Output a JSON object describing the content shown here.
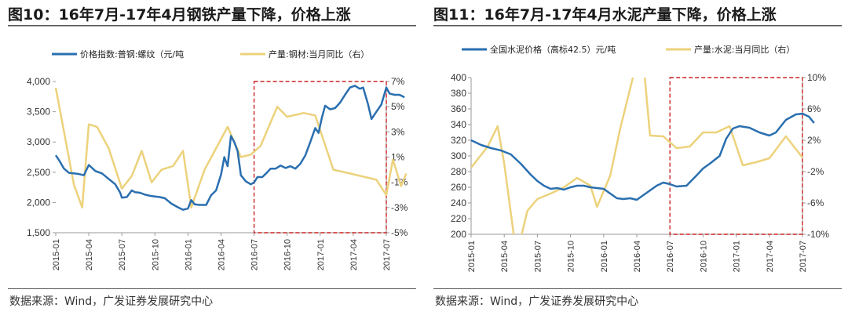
{
  "chart_data": [
    {
      "type": "line",
      "title": "图10：16年7月-17年4月钢铁产量下降，价格上涨",
      "source": "数据来源：Wind，广发证券发展研究中心",
      "x": [
        "2015-01",
        "2015-04",
        "2015-07",
        "2015-10",
        "2016-01",
        "2016-04",
        "2016-07",
        "2016-10",
        "2017-01",
        "2017-04",
        "2017-07"
      ],
      "series": [
        {
          "name": "价格指数:普钢:螺纹（元/吨",
          "axis": "left",
          "color": "#2a6fb0",
          "points": [
            [
              0,
              2780
            ],
            [
              0.1,
              2700
            ],
            [
              0.25,
              2560
            ],
            [
              0.4,
              2490
            ],
            [
              0.55,
              2480
            ],
            [
              0.7,
              2470
            ],
            [
              0.85,
              2450
            ],
            [
              1.0,
              2620
            ],
            [
              1.2,
              2520
            ],
            [
              1.4,
              2480
            ],
            [
              1.6,
              2390
            ],
            [
              1.8,
              2300
            ],
            [
              1.95,
              2160
            ],
            [
              2.0,
              2080
            ],
            [
              2.15,
              2090
            ],
            [
              2.3,
              2200
            ],
            [
              2.4,
              2170
            ],
            [
              2.55,
              2160
            ],
            [
              2.7,
              2130
            ],
            [
              2.85,
              2110
            ],
            [
              3.0,
              2100
            ],
            [
              3.15,
              2090
            ],
            [
              3.3,
              2070
            ],
            [
              3.5,
              1980
            ],
            [
              3.7,
              1920
            ],
            [
              3.85,
              1880
            ],
            [
              4.0,
              1900
            ],
            [
              4.1,
              2040
            ],
            [
              4.2,
              1970
            ],
            [
              4.35,
              1960
            ],
            [
              4.55,
              1960
            ],
            [
              4.7,
              2120
            ],
            [
              4.85,
              2200
            ],
            [
              5.0,
              2460
            ],
            [
              5.1,
              2750
            ],
            [
              5.2,
              2600
            ],
            [
              5.3,
              3100
            ],
            [
              5.4,
              3000
            ],
            [
              5.5,
              2850
            ],
            [
              5.6,
              2450
            ],
            [
              5.75,
              2350
            ],
            [
              5.9,
              2300
            ],
            [
              6.0,
              2330
            ],
            [
              6.1,
              2420
            ],
            [
              6.25,
              2420
            ],
            [
              6.4,
              2500
            ],
            [
              6.5,
              2560
            ],
            [
              6.65,
              2560
            ],
            [
              6.8,
              2610
            ],
            [
              6.95,
              2570
            ],
            [
              7.1,
              2600
            ],
            [
              7.25,
              2560
            ],
            [
              7.4,
              2640
            ],
            [
              7.55,
              2780
            ],
            [
              7.7,
              3000
            ],
            [
              7.85,
              3230
            ],
            [
              7.95,
              3150
            ],
            [
              8.05,
              3400
            ],
            [
              8.15,
              3600
            ],
            [
              8.3,
              3540
            ],
            [
              8.45,
              3560
            ],
            [
              8.6,
              3650
            ],
            [
              8.75,
              3780
            ],
            [
              8.9,
              3900
            ],
            [
              9.05,
              3930
            ],
            [
              9.2,
              3880
            ],
            [
              9.3,
              3900
            ],
            [
              9.45,
              3620
            ],
            [
              9.55,
              3380
            ],
            [
              9.7,
              3500
            ],
            [
              9.85,
              3620
            ],
            [
              10.0,
              3900
            ],
            [
              10.1,
              3800
            ],
            [
              10.25,
              3780
            ],
            [
              10.4,
              3780
            ],
            [
              10.55,
              3740
            ]
          ]
        },
        {
          "name": "产量:钢材:当月同比（右）",
          "axis": "right",
          "color": "#ecd27c",
          "points": [
            [
              0,
              6.5
            ],
            [
              0.55,
              -1.2
            ],
            [
              0.8,
              -3.0
            ],
            [
              1.0,
              3.6
            ],
            [
              1.25,
              3.4
            ],
            [
              1.6,
              1.7
            ],
            [
              2.0,
              -1.5
            ],
            [
              2.3,
              -0.5
            ],
            [
              2.6,
              1.5
            ],
            [
              2.9,
              -1.0
            ],
            [
              3.2,
              0.0
            ],
            [
              3.55,
              0.3
            ],
            [
              3.85,
              1.5
            ],
            [
              4.1,
              -3.0
            ],
            [
              4.5,
              0.0
            ],
            [
              5.2,
              3.4
            ],
            [
              5.6,
              1.0
            ],
            [
              5.9,
              1.2
            ],
            [
              6.2,
              1.9
            ],
            [
              6.7,
              5.0
            ],
            [
              7.0,
              4.2
            ],
            [
              7.5,
              4.5
            ],
            [
              7.85,
              4.3
            ],
            [
              8.4,
              0.0
            ],
            [
              8.9,
              -0.3
            ],
            [
              9.7,
              -0.8
            ],
            [
              10.0,
              -2.0
            ],
            [
              10.2,
              0.8
            ],
            [
              10.45,
              -1.3
            ],
            [
              10.6,
              -0.3
            ]
          ]
        }
      ],
      "yleft": {
        "min": 1500,
        "max": 4000,
        "ticks": [
          "1,500",
          "2,000",
          "2,500",
          "3,000",
          "3,500",
          "4,000"
        ]
      },
      "yright": {
        "min": -5,
        "max": 7,
        "ticks": [
          "-5%",
          "-3%",
          "-1%",
          "1%",
          "3%",
          "5%",
          "7%"
        ]
      },
      "highlight": {
        "x_from": 6.0,
        "x_to": 10.0,
        "label": ""
      }
    },
    {
      "type": "line",
      "title": "图11：16年7月-17年4月水泥产量下降，价格上涨",
      "source": "数据来源：Wind，广发证券发展研究中心",
      "x": [
        "2015-01",
        "2015-04",
        "2015-07",
        "2015-10",
        "2016-01",
        "2016-04",
        "2016-07",
        "2016-10",
        "2017-01",
        "2017-04",
        "2017-07"
      ],
      "series": [
        {
          "name": "全国水泥价格（高标42.5）元/吨",
          "axis": "left",
          "color": "#2a6fb0",
          "points": [
            [
              0,
              320
            ],
            [
              0.3,
              314
            ],
            [
              0.6,
              310
            ],
            [
              0.9,
              307
            ],
            [
              1.2,
              302
            ],
            [
              1.5,
              290
            ],
            [
              1.8,
              276
            ],
            [
              2.0,
              268
            ],
            [
              2.2,
              262
            ],
            [
              2.4,
              258
            ],
            [
              2.6,
              259
            ],
            [
              2.8,
              257
            ],
            [
              3.0,
              260
            ],
            [
              3.2,
              262
            ],
            [
              3.4,
              262
            ],
            [
              3.6,
              260
            ],
            [
              3.8,
              259
            ],
            [
              4.0,
              258
            ],
            [
              4.2,
              252
            ],
            [
              4.4,
              246
            ],
            [
              4.6,
              245
            ],
            [
              4.8,
              246
            ],
            [
              5.0,
              244
            ],
            [
              5.2,
              250
            ],
            [
              5.4,
              256
            ],
            [
              5.6,
              262
            ],
            [
              5.8,
              266
            ],
            [
              6.0,
              264
            ],
            [
              6.2,
              261
            ],
            [
              6.5,
              262
            ],
            [
              6.8,
              275
            ],
            [
              7.0,
              284
            ],
            [
              7.2,
              290
            ],
            [
              7.5,
              300
            ],
            [
              7.7,
              322
            ],
            [
              7.9,
              335
            ],
            [
              8.1,
              338
            ],
            [
              8.4,
              336
            ],
            [
              8.7,
              330
            ],
            [
              9.0,
              326
            ],
            [
              9.2,
              330
            ],
            [
              9.5,
              346
            ],
            [
              9.8,
              353
            ],
            [
              10.0,
              354
            ],
            [
              10.2,
              350
            ],
            [
              10.35,
              342
            ]
          ]
        },
        {
          "name": "产量:水泥:当月同比（右）",
          "axis": "right",
          "color": "#ecd27c",
          "points": [
            [
              0,
              -1.5
            ],
            [
              0.5,
              1.2
            ],
            [
              0.8,
              3.8
            ],
            [
              1.0,
              -1.0
            ],
            [
              1.3,
              -10.5
            ],
            [
              1.5,
              -10.5
            ],
            [
              1.7,
              -7.0
            ],
            [
              2.0,
              -5.5
            ],
            [
              2.4,
              -4.8
            ],
            [
              2.8,
              -4.0
            ],
            [
              3.2,
              -2.8
            ],
            [
              3.6,
              -3.8
            ],
            [
              3.8,
              -6.5
            ],
            [
              4.2,
              -2.5
            ],
            [
              4.5,
              3.5
            ],
            [
              5.0,
              12.0
            ],
            [
              5.2,
              12.0
            ],
            [
              5.4,
              2.6
            ],
            [
              5.8,
              2.5
            ],
            [
              6.2,
              1.0
            ],
            [
              6.6,
              1.2
            ],
            [
              7.0,
              3.0
            ],
            [
              7.4,
              3.0
            ],
            [
              7.8,
              3.8
            ],
            [
              8.2,
              -1.2
            ],
            [
              8.6,
              -0.8
            ],
            [
              9.0,
              -0.3
            ],
            [
              9.5,
              2.5
            ],
            [
              10.0,
              -0.2
            ],
            [
              10.35,
              -1.0
            ]
          ]
        }
      ],
      "yleft": {
        "min": 200,
        "max": 400,
        "ticks": [
          "200",
          "220",
          "240",
          "260",
          "280",
          "300",
          "320",
          "340",
          "360",
          "380",
          "400"
        ]
      },
      "yright": {
        "min": -10,
        "max": 10,
        "ticks": [
          "-10%",
          "-6%",
          "-2%",
          "2%",
          "6%",
          "10%"
        ]
      },
      "highlight": {
        "x_from": 6.0,
        "x_to": 10.0,
        "label": ""
      }
    }
  ]
}
